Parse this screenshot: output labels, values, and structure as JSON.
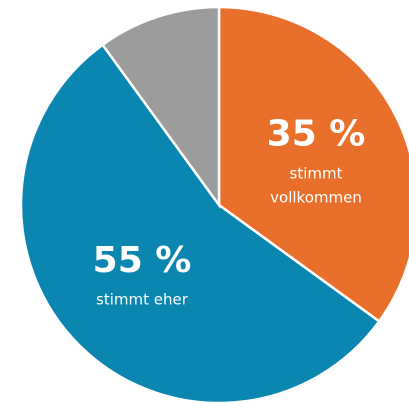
{
  "chart_data": {
    "type": "pie",
    "categories": [
      "stimmt vollkommen",
      "stimmt eher",
      null
    ],
    "values": [
      35,
      55,
      10
    ],
    "value_labels": [
      "35 %",
      "55 %",
      null
    ],
    "colors": [
      "#e8702a",
      "#0a86b0",
      "#9c9c9c"
    ],
    "start_angle": 90,
    "direction": "clockwise"
  }
}
